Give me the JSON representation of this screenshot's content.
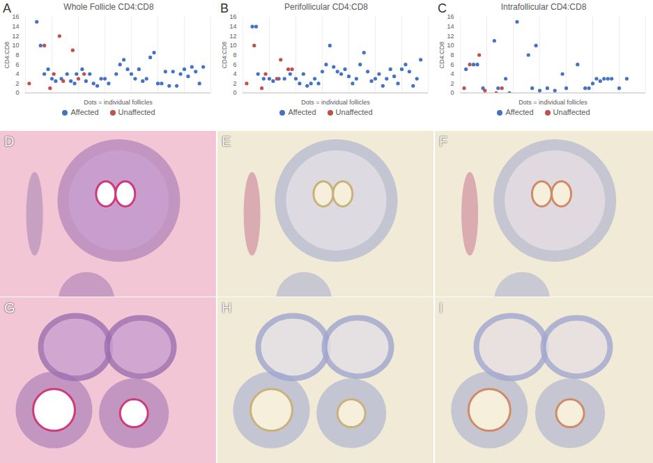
{
  "chart_data": [
    {
      "type": "scatter",
      "panel_label": "A",
      "title": "Whole Follicle CD4:CD8",
      "x_label": "Dots = individual follicles",
      "y_label": "CD4:CD8",
      "xlim": [
        0,
        49
      ],
      "xticks": [
        0,
        7,
        14,
        21,
        28,
        35,
        42,
        49
      ],
      "ylim": [
        0,
        16
      ],
      "yticks": [
        0,
        2,
        4,
        6,
        8,
        10,
        12,
        14,
        16
      ],
      "grid": "x",
      "tick_labels": "y",
      "legend": "bottom",
      "marker": "circle",
      "series": [
        {
          "name": "Affected",
          "color": "#4472c4",
          "x": [
            3,
            4,
            5,
            6,
            7,
            8,
            9.5,
            11,
            12,
            13,
            13.5,
            15,
            16,
            17,
            18,
            19,
            20,
            21,
            22,
            24,
            25,
            26,
            27,
            28,
            29,
            30,
            31,
            32,
            33,
            34,
            35,
            36,
            37,
            38,
            39,
            40,
            41,
            42,
            43,
            44,
            45,
            46,
            47
          ],
          "values": [
            15,
            10,
            4,
            5,
            3,
            2.5,
            3,
            4,
            2.5,
            2,
            4,
            5,
            2.5,
            4,
            2,
            1.5,
            3,
            3,
            2,
            4,
            6,
            7,
            5,
            4,
            3,
            5,
            2.5,
            3,
            7.5,
            8.5,
            2,
            2,
            4.5,
            1.5,
            4.5,
            1.5,
            4,
            5,
            3.5,
            5.5,
            4.5,
            2,
            5.5
          ]
        },
        {
          "name": "Unaffected",
          "color": "#c0504d",
          "x": [
            1,
            5,
            6.5,
            7.5,
            9,
            10,
            12.5,
            14,
            15.5
          ],
          "values": [
            2,
            10,
            1,
            4,
            12,
            2.5,
            9,
            3,
            4
          ]
        }
      ]
    },
    {
      "type": "scatter",
      "panel_label": "B",
      "title": "Perifollicular CD4:CD8",
      "x_label": "Dots = individual follicles",
      "y_label": "CD4:CD8",
      "xlim": [
        0,
        49
      ],
      "xticks": [
        0,
        7,
        14,
        21,
        28,
        35,
        42,
        49
      ],
      "ylim": [
        0,
        16
      ],
      "yticks": [
        0,
        2,
        4,
        6,
        8,
        10,
        12,
        14,
        16
      ],
      "grid": "x",
      "tick_labels": "y",
      "legend": "bottom",
      "marker": "circle",
      "series": [
        {
          "name": "Affected",
          "color": "#4472c4",
          "x": [
            2.5,
            3.5,
            4,
            5.5,
            7,
            8,
            9.5,
            11,
            12.5,
            14,
            15,
            16,
            17,
            18,
            19,
            20,
            21,
            22,
            23,
            24,
            25,
            26,
            27,
            28,
            29,
            30,
            31,
            32,
            33,
            34,
            35,
            36,
            37,
            38,
            39,
            40,
            41,
            42,
            43,
            44,
            45,
            46,
            47
          ],
          "values": [
            14,
            14,
            4,
            3,
            3,
            2.5,
            3,
            3,
            4,
            3,
            2,
            4,
            1.5,
            2,
            3,
            2,
            4.5,
            6,
            10,
            5.5,
            4.5,
            4,
            5,
            3.5,
            2,
            3,
            6,
            8.5,
            4.5,
            2.5,
            3,
            4,
            1.5,
            3,
            5,
            3.5,
            2,
            5,
            6,
            4.5,
            1.5,
            3,
            7
          ]
        },
        {
          "name": "Unaffected",
          "color": "#c0504d",
          "x": [
            1,
            3,
            5,
            6,
            9,
            10,
            12,
            13
          ],
          "values": [
            2,
            10,
            1,
            4,
            3,
            7,
            5,
            5
          ]
        }
      ]
    },
    {
      "type": "scatter",
      "panel_label": "C",
      "title": "Intrafollicular CD4:CD8",
      "x_label": "Dots = individual follicles",
      "y_label": "CD4:CD8",
      "xlim": [
        0,
        49
      ],
      "xticks": [
        0,
        7,
        14,
        21,
        28,
        35,
        42,
        49
      ],
      "ylim": [
        0,
        16
      ],
      "yticks": [
        0,
        2,
        4,
        6,
        8,
        10,
        12,
        14,
        16
      ],
      "grid": "x",
      "tick_labels": "y",
      "legend": "bottom",
      "marker": "circle",
      "series": [
        {
          "name": "Affected",
          "color": "#4472c4",
          "x": [
            1.5,
            3.5,
            4.5,
            6,
            9,
            10,
            12,
            13,
            15,
            18,
            19,
            20,
            21,
            23,
            25,
            27,
            28,
            31,
            33,
            34,
            35,
            36,
            37,
            38,
            39,
            40,
            42,
            44
          ],
          "values": [
            5,
            6,
            6,
            1,
            11,
            1,
            3,
            0,
            15,
            8,
            1,
            10,
            0.5,
            1,
            0.5,
            4,
            1,
            6,
            1,
            1,
            2,
            3,
            2.5,
            3,
            3,
            3,
            1,
            3
          ]
        },
        {
          "name": "Unaffected",
          "color": "#c0504d",
          "x": [
            1,
            2.5,
            5,
            6.5,
            9.5,
            11
          ],
          "values": [
            1,
            6,
            8,
            0.5,
            0,
            1
          ]
        }
      ]
    }
  ],
  "image_panels": [
    "D",
    "E",
    "F",
    "G",
    "H",
    "I"
  ]
}
